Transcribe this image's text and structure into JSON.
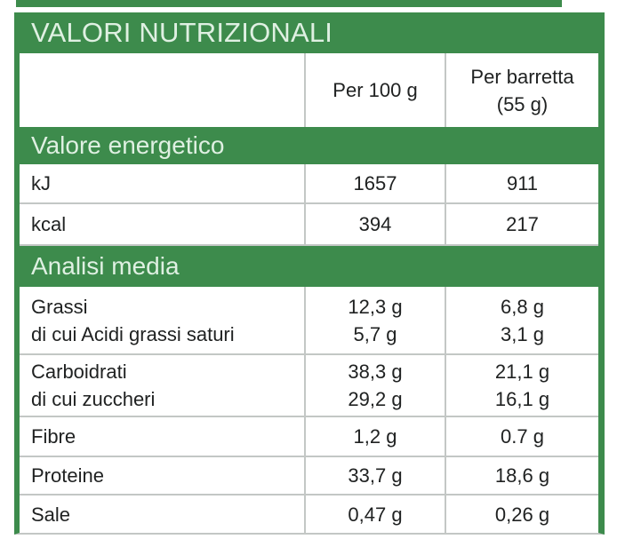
{
  "title": "VALORI NUTRIZIONALI",
  "colors": {
    "green": "#3d8b4c",
    "band_text": "#dff0e2",
    "text": "#202222",
    "divider": "#c3c7c5"
  },
  "header": {
    "col_per100": "Per 100 g",
    "col_perbar_line1": "Per barretta",
    "col_perbar_line2": "(55 g)"
  },
  "sections": [
    {
      "header": "Valore energetico",
      "rows": [
        {
          "lines": [
            "kJ"
          ],
          "per100": [
            "1657"
          ],
          "perbar": [
            "911"
          ]
        },
        {
          "lines": [
            "kcal"
          ],
          "per100": [
            "394"
          ],
          "perbar": [
            "217"
          ]
        }
      ]
    },
    {
      "header": "Analisi media",
      "rows": [
        {
          "lines": [
            "Grassi",
            "di cui Acidi grassi saturi"
          ],
          "per100": [
            "12,3 g",
            "5,7 g"
          ],
          "perbar": [
            "6,8 g",
            "3,1 g"
          ]
        },
        {
          "lines": [
            "Carboidrati",
            "di cui zuccheri"
          ],
          "per100": [
            "38,3 g",
            "29,2 g"
          ],
          "perbar": [
            "21,1 g",
            "16,1 g"
          ]
        },
        {
          "lines": [
            "Fibre"
          ],
          "per100": [
            "1,2 g"
          ],
          "perbar": [
            "0.7 g"
          ]
        },
        {
          "lines": [
            "Proteine"
          ],
          "per100": [
            "33,7 g"
          ],
          "perbar": [
            "18,6 g"
          ]
        },
        {
          "lines": [
            "Sale"
          ],
          "per100": [
            "0,47 g"
          ],
          "perbar": [
            "0,26 g"
          ]
        }
      ]
    }
  ]
}
